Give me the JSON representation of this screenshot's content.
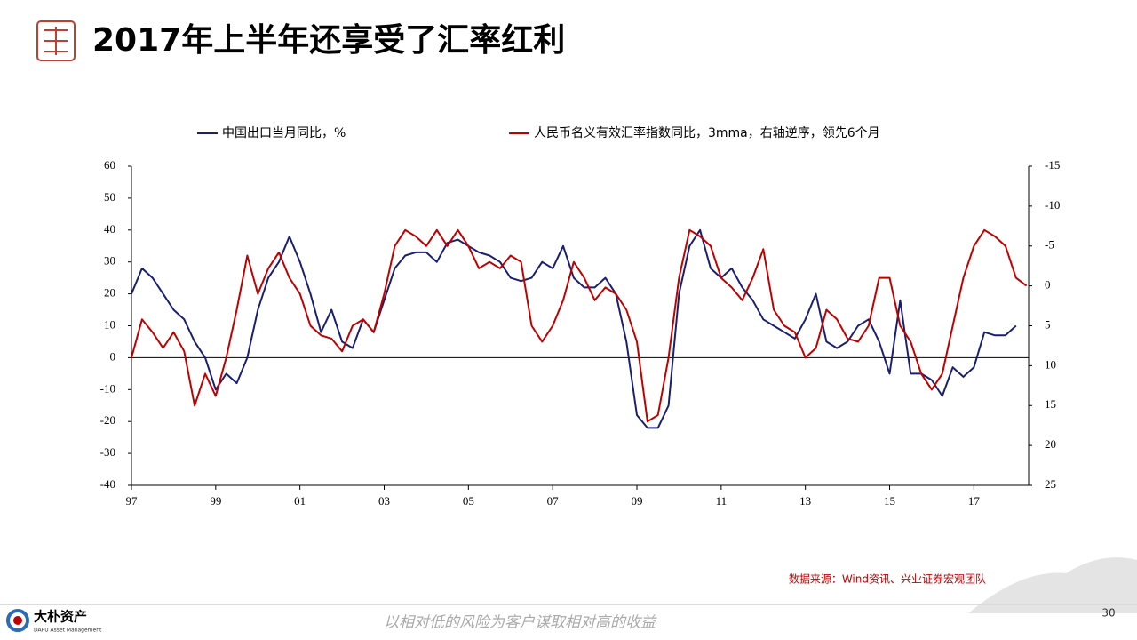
{
  "slide": {
    "title": "2017年上半年还享受了汇率红利",
    "source": "数据来源：Wind资讯、兴业证券宏观团队",
    "slogan": "以相对低的风险为客户谋取相对高的收益",
    "page": "30",
    "logo_name": "大朴资产",
    "logo_sub": "DAPU Asset Management"
  },
  "chart_data": {
    "type": "line",
    "series": [
      {
        "name": "中国出口当月同比，%",
        "color": "#1a1f71",
        "x": [
          1997,
          1997.25,
          1997.5,
          1997.75,
          1998,
          1998.25,
          1998.5,
          1998.75,
          1999,
          1999.25,
          1999.5,
          1999.75,
          2000,
          2000.25,
          2000.5,
          2000.75,
          2001,
          2001.25,
          2001.5,
          2001.75,
          2002,
          2002.25,
          2002.5,
          2002.75,
          2003,
          2003.25,
          2003.5,
          2003.75,
          2004,
          2004.25,
          2004.5,
          2004.75,
          2005,
          2005.25,
          2005.5,
          2005.75,
          2006,
          2006.25,
          2006.5,
          2006.75,
          2007,
          2007.25,
          2007.5,
          2007.75,
          2008,
          2008.25,
          2008.5,
          2008.75,
          2009,
          2009.25,
          2009.5,
          2009.75,
          2010,
          2010.25,
          2010.5,
          2010.75,
          2011,
          2011.25,
          2011.5,
          2011.75,
          2012,
          2012.25,
          2012.5,
          2012.75,
          2013,
          2013.25,
          2013.5,
          2013.75,
          2014,
          2014.25,
          2014.5,
          2014.75,
          2015,
          2015.25,
          2015.5,
          2015.75,
          2016,
          2016.25,
          2016.5,
          2016.75,
          2017,
          2017.25,
          2017.5,
          2017.75,
          2018
        ],
        "values": [
          20,
          28,
          25,
          20,
          15,
          12,
          5,
          0,
          -10,
          -5,
          -8,
          0,
          15,
          25,
          30,
          38,
          30,
          20,
          8,
          15,
          5,
          3,
          12,
          8,
          18,
          28,
          32,
          33,
          33,
          30,
          36,
          37,
          35,
          33,
          32,
          30,
          25,
          24,
          25,
          30,
          28,
          35,
          25,
          22,
          22,
          25,
          20,
          5,
          -18,
          -22,
          -22,
          -15,
          20,
          35,
          40,
          28,
          25,
          28,
          22,
          18,
          12,
          10,
          8,
          6,
          12,
          20,
          5,
          3,
          5,
          10,
          12,
          5,
          -5,
          18,
          -5,
          -5,
          -7,
          -12,
          -3,
          -6,
          -3,
          8,
          7,
          7,
          10
        ]
      },
      {
        "name": "人民币名义有效汇率指数同比，3mma，右轴逆序，领先6个月",
        "color": "#c00000",
        "axis": "y2",
        "x": [
          1997,
          1997.25,
          1997.5,
          1997.75,
          1998,
          1998.25,
          1998.5,
          1998.75,
          1999,
          1999.25,
          1999.5,
          1999.75,
          2000,
          2000.25,
          2000.5,
          2000.75,
          2001,
          2001.25,
          2001.5,
          2001.75,
          2002,
          2002.25,
          2002.5,
          2002.75,
          2003,
          2003.25,
          2003.5,
          2003.75,
          2004,
          2004.25,
          2004.5,
          2004.75,
          2005,
          2005.25,
          2005.5,
          2005.75,
          2006,
          2006.25,
          2006.5,
          2006.75,
          2007,
          2007.25,
          2007.5,
          2007.75,
          2008,
          2008.25,
          2008.5,
          2008.75,
          2009,
          2009.25,
          2009.5,
          2009.75,
          2010,
          2010.25,
          2010.5,
          2010.75,
          2011,
          2011.25,
          2011.5,
          2011.75,
          2012,
          2012.25,
          2012.5,
          2012.75,
          2013,
          2013.25,
          2013.5,
          2013.75,
          2014,
          2014.25,
          2014.5,
          2014.75,
          2015,
          2015.25,
          2015.5,
          2015.75,
          2016,
          2016.25,
          2016.5,
          2016.75,
          2017,
          2017.25,
          2017.5,
          2017.75,
          2018,
          2018.25
        ],
        "values": [
          9,
          4.2,
          5.8,
          7.8,
          5.8,
          8.2,
          15,
          11,
          13.8,
          9,
          3,
          -3.8,
          1,
          -2.2,
          -4.2,
          -1,
          1,
          5,
          6.2,
          6.6,
          8.2,
          5,
          4.2,
          5.8,
          1,
          -5,
          -7,
          -6.2,
          -5,
          -7,
          -5,
          -7,
          -5,
          -2.2,
          -3,
          -2.2,
          -3.8,
          -3,
          5,
          7,
          5,
          1.8,
          -3,
          -1,
          1.8,
          0.2,
          1,
          3,
          7,
          17,
          16.2,
          9,
          -1,
          -7,
          -6.2,
          -5,
          -1,
          0.2,
          1.8,
          -1,
          -4.6,
          3,
          5,
          5.8,
          9,
          7.8,
          3,
          4.2,
          6.6,
          7,
          5,
          -1,
          -1,
          5,
          7,
          11,
          13,
          11,
          5,
          -1,
          -5,
          -7,
          -6.2,
          -5,
          -1,
          0
        ]
      }
    ],
    "xlim": [
      1997,
      2018.3
    ],
    "xticks": [
      {
        "value": 1997,
        "label": "97"
      },
      {
        "value": 1999,
        "label": "99"
      },
      {
        "value": 2001,
        "label": "01"
      },
      {
        "value": 2003,
        "label": "03"
      },
      {
        "value": 2005,
        "label": "05"
      },
      {
        "value": 2007,
        "label": "07"
      },
      {
        "value": 2009,
        "label": "09"
      },
      {
        "value": 2011,
        "label": "11"
      },
      {
        "value": 2013,
        "label": "13"
      },
      {
        "value": 2015,
        "label": "15"
      },
      {
        "value": 2017,
        "label": "17"
      }
    ],
    "ylim": [
      -40,
      60
    ],
    "yticks": [
      -40,
      -30,
      -20,
      -10,
      0,
      10,
      20,
      30,
      40,
      50,
      60
    ],
    "y2lim": [
      25,
      -15
    ],
    "y2ticks": [
      25,
      20,
      15,
      10,
      5,
      0,
      -5,
      -10,
      -15
    ],
    "legend": "top"
  }
}
